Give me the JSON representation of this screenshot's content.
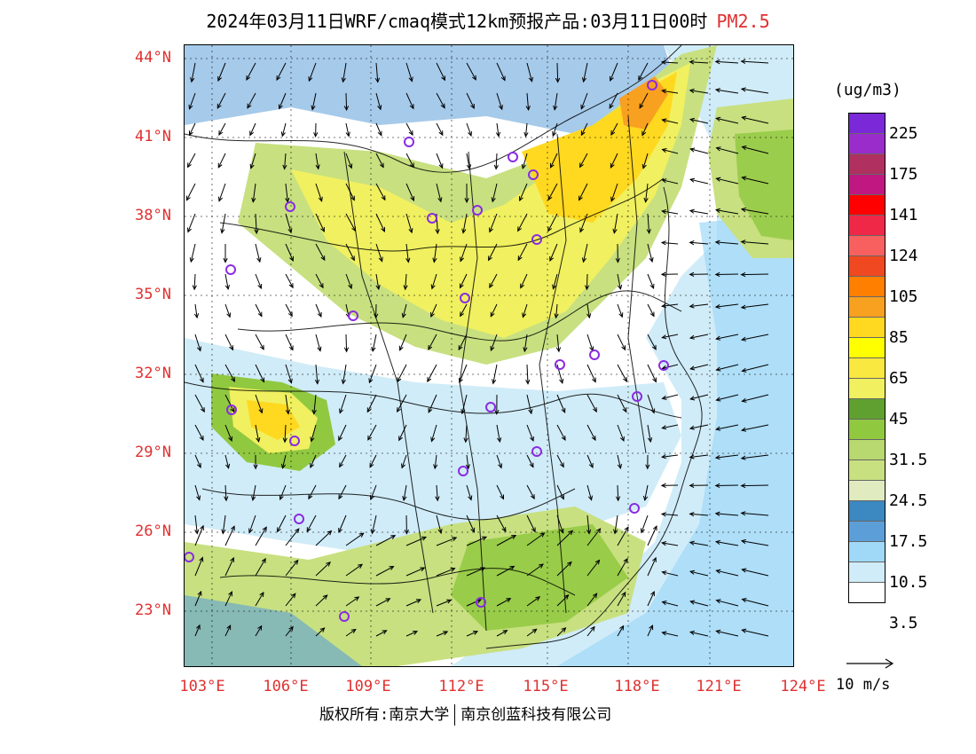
{
  "title": "2024年03月11日WRF/cmaq模式12km预报产品:03月11日00时",
  "variable": "PM2.5",
  "unit": "(ug/m3)",
  "wind_legend": "10 m/s",
  "copyright": {
    "left": "版权所有:南京大学",
    "right": "南京创蓝科技有限公司"
  },
  "lat_labels": [
    "44°N",
    "41°N",
    "38°N",
    "35°N",
    "32°N",
    "29°N",
    "26°N",
    "23°N"
  ],
  "lon_labels": [
    "103°E",
    "106°E",
    "109°E",
    "112°E",
    "115°E",
    "118°E",
    "121°E",
    "124°E"
  ],
  "colorbar": {
    "colors": [
      "#7a28d8",
      "#9a2ccc",
      "#b03060",
      "#c01880",
      "#ff0000",
      "#f02848",
      "#f86060",
      "#f04820",
      "#ff8000",
      "#f8a020",
      "#ffd820",
      "#ffff00",
      "#f8e840",
      "#f0f060",
      "#60a030",
      "#90c840",
      "#b8d870",
      "#c8e080",
      "#e0ecc0",
      "#3c88c0",
      "#5c9ed8",
      "#a0d8f8",
      "#d0ecf8",
      "#ffffff"
    ],
    "labels": [
      "225",
      "175",
      "141",
      "124",
      "105",
      "85",
      "65",
      "45",
      "31.5",
      "24.5",
      "17.5",
      "10.5",
      "3.5"
    ]
  },
  "colors": {
    "title": "#000000",
    "accent": "#e03030",
    "marker": "#8a2be2",
    "boundary": "#000000",
    "land_low": "#ffffff",
    "land_mid": "#c8e080",
    "land_high": "#ffe040",
    "sea": "#a0d8f8"
  }
}
